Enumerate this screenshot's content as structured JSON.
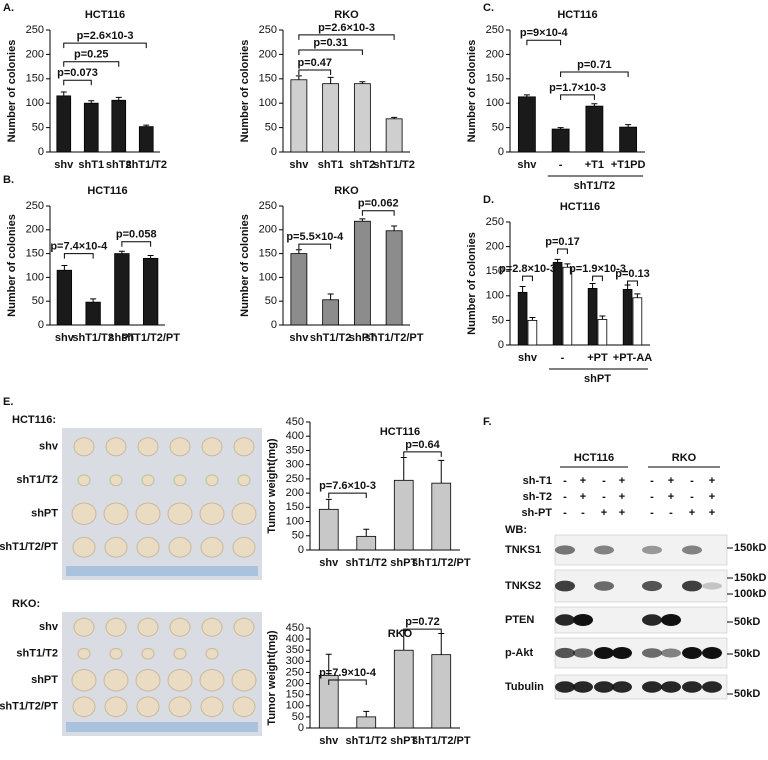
{
  "panel_labels": [
    "A.",
    "B.",
    "C.",
    "D.",
    "E.",
    "F."
  ],
  "chart_data": [
    {
      "type": "bar",
      "title": "HCT116",
      "y_label": "Number of colonies",
      "categories": [
        "shv",
        "shT1",
        "shT2",
        "shT1/T2"
      ],
      "values": [
        115,
        100,
        106,
        52
      ],
      "errors": [
        8,
        5,
        6,
        3
      ],
      "color": "#1a1a1a",
      "ylim": [
        0,
        250
      ],
      "yticks": [
        0,
        50,
        100,
        150,
        200,
        250
      ],
      "annotations": [
        "p=0.073",
        "p=0.25",
        "p=2.6×10-3"
      ]
    },
    {
      "type": "bar",
      "title": "RKO",
      "y_label": "Number of colonies",
      "categories": [
        "shv",
        "shT1",
        "shT2",
        "shT1/T2"
      ],
      "values": [
        148,
        140,
        140,
        68
      ],
      "errors": [
        8,
        13,
        4,
        3
      ],
      "color": "#cfcfcf",
      "ylim": [
        0,
        250
      ],
      "yticks": [
        0,
        50,
        100,
        150,
        200,
        250
      ],
      "annotations": [
        "p=0.47",
        "p=0.31",
        "p=2.6×10-3"
      ]
    },
    {
      "type": "bar",
      "title": "HCT116",
      "y_label": "Number of colonies",
      "categories": [
        "shv",
        "-",
        "+T1",
        "+T1PD"
      ],
      "values": [
        113,
        47,
        94,
        51
      ],
      "errors": [
        4,
        3,
        5,
        5
      ],
      "color": "#1a1a1a",
      "ylim": [
        0,
        250
      ],
      "yticks": [
        0,
        50,
        100,
        150,
        200,
        250
      ],
      "group_label": "shT1/T2",
      "annotations": [
        "p=9×10-4",
        "p=1.7×10-3",
        "p=0.71"
      ]
    },
    {
      "type": "bar",
      "title": "HCT116",
      "y_label": "Number of colonies",
      "categories": [
        "shv",
        "shT1/T2",
        "shPT",
        "shT1/T2/PT"
      ],
      "values": [
        115,
        48,
        150,
        140
      ],
      "errors": [
        10,
        7,
        5,
        6
      ],
      "color": "#1a1a1a",
      "ylim": [
        0,
        250
      ],
      "yticks": [
        0,
        50,
        100,
        150,
        200,
        250
      ],
      "annotations": [
        "p=7.4×10-4",
        "p=0.058"
      ]
    },
    {
      "type": "bar",
      "title": "RKO",
      "y_label": "Number of colonies",
      "categories": [
        "shv",
        "shT1/T2",
        "shPT",
        "shT1/T2/PT"
      ],
      "values": [
        150,
        53,
        218,
        198
      ],
      "errors": [
        8,
        12,
        5,
        10
      ],
      "color": "#8c8c8c",
      "ylim": [
        0,
        250
      ],
      "yticks": [
        0,
        50,
        100,
        150,
        200,
        250
      ],
      "annotations": [
        "p=5.5×10-4",
        "p=0.062"
      ]
    },
    {
      "type": "bar",
      "title": "HCT116",
      "y_label": "Number of colonies",
      "categories": [
        "shv",
        "-",
        "+PT",
        "+PT-AA"
      ],
      "series": [
        {
          "color": "#1a1a1a",
          "values": [
            107,
            168,
            115,
            113
          ],
          "errors": [
            12,
            6,
            10,
            9
          ]
        },
        {
          "color": "#ffffff",
          "values": [
            50,
            158,
            52,
            96
          ],
          "errors": [
            6,
            7,
            7,
            8
          ]
        }
      ],
      "ylim": [
        0,
        250
      ],
      "yticks": [
        0,
        50,
        100,
        150,
        200,
        250
      ],
      "group_label": "shPT",
      "annotations": [
        "p=2.8×10-3",
        "p=0.17",
        "p=1.9×10-3",
        "p=0.13"
      ]
    },
    {
      "type": "bar",
      "title": "HCT116",
      "y_label": "Tumor weight(mg)",
      "categories": [
        "shv",
        "shT1/T2",
        "shPT",
        "shT1/T2/PT"
      ],
      "values": [
        143,
        48,
        245,
        235
      ],
      "errors": [
        35,
        25,
        80,
        80
      ],
      "color": "#c8c8c8",
      "ylim": [
        0,
        450
      ],
      "yticks": [
        0,
        50,
        100,
        150,
        200,
        250,
        300,
        350,
        400,
        450
      ],
      "annotations": [
        "p=7.6×10-3",
        "p=0.64"
      ]
    },
    {
      "type": "bar",
      "title": "RKO",
      "y_label": "Tumor weight(mg)",
      "categories": [
        "shv",
        "shT1/T2",
        "shPT",
        "shT1/T2/PT"
      ],
      "values": [
        237,
        50,
        350,
        330
      ],
      "errors": [
        95,
        25,
        90,
        95
      ],
      "color": "#c8c8c8",
      "ylim": [
        0,
        450
      ],
      "yticks": [
        0,
        50,
        100,
        150,
        200,
        250,
        300,
        350,
        400,
        450
      ],
      "annotations": [
        "p=7.9×10-4",
        "p=0.72"
      ]
    }
  ],
  "photos": [
    {
      "title": "HCT116:",
      "rows": [
        "shv",
        "shT1/T2",
        "shPT",
        "shT1/T2/PT"
      ]
    },
    {
      "title": "RKO:",
      "rows": [
        "shv",
        "shT1/T2",
        "shPT",
        "shT1/T2/PT"
      ]
    }
  ],
  "blot": {
    "cell_lines": [
      "HCT116",
      "RKO"
    ],
    "wb_label": "WB:",
    "conditions": [
      {
        "name": "sh-T1",
        "signs": [
          "-",
          "+",
          "-",
          "+",
          "-",
          "+",
          "-",
          "+"
        ]
      },
      {
        "name": "sh-T2",
        "signs": [
          "-",
          "+",
          "-",
          "+",
          "-",
          "+",
          "-",
          "+"
        ]
      },
      {
        "name": "sh-PT",
        "signs": [
          "-",
          "-",
          "+",
          "+",
          "-",
          "-",
          "+",
          "+"
        ]
      }
    ],
    "rows": [
      {
        "name": "TNKS1",
        "markers": [
          "150kD"
        ]
      },
      {
        "name": "TNKS2",
        "markers": [
          "150kD",
          "100kD"
        ]
      },
      {
        "name": "PTEN",
        "markers": [
          "50kD"
        ]
      },
      {
        "name": "p-Akt",
        "markers": [
          "50kD"
        ]
      },
      {
        "name": "Tubulin",
        "markers": [
          "50kD"
        ]
      }
    ]
  }
}
